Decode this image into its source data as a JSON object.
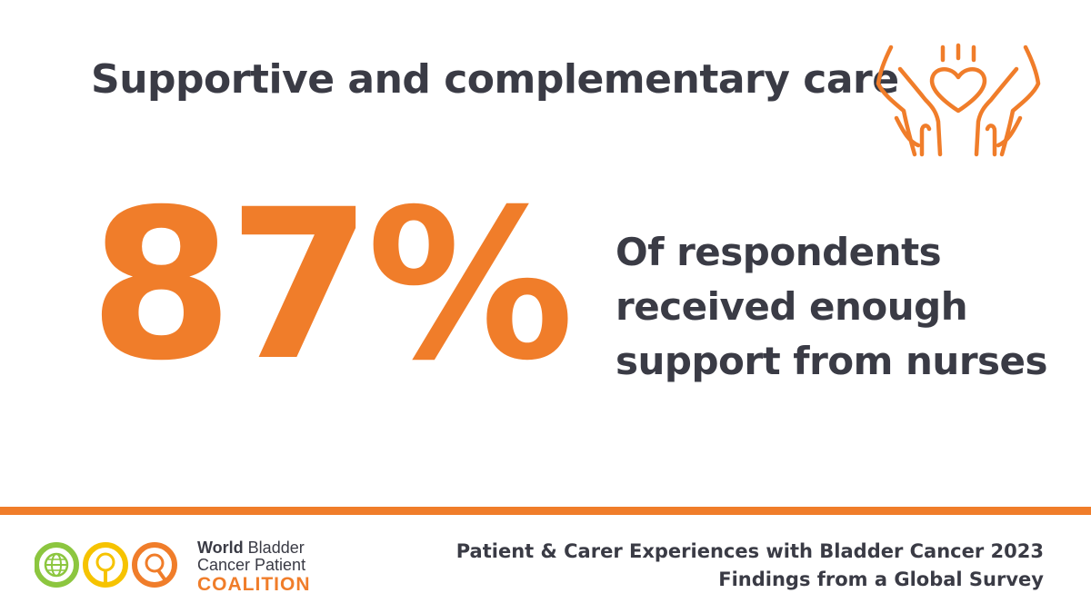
{
  "header": {
    "title": "Supportive and complementary care",
    "icon": "hands-holding-heart-icon"
  },
  "stat": {
    "value": "87%",
    "description_lines": [
      "Of respondents",
      "received enough",
      "support from nurses"
    ]
  },
  "footer": {
    "org": {
      "line1_bold": "World",
      "line1_rest": " Bladder",
      "line2": "Cancer Patient",
      "line3": "COALITION",
      "logo_icon": "globe-and-bladder-circles-logo-icon"
    },
    "report": {
      "line1": "Patient & Carer Experiences with Bladder Cancer 2023",
      "line2": "Findings from a Global Survey"
    }
  },
  "colors": {
    "accent": "#f07d2a",
    "text": "#3a3b45",
    "logo_green": "#8cc63f",
    "logo_yellow": "#f6c300",
    "logo_orange": "#f07d2a"
  }
}
